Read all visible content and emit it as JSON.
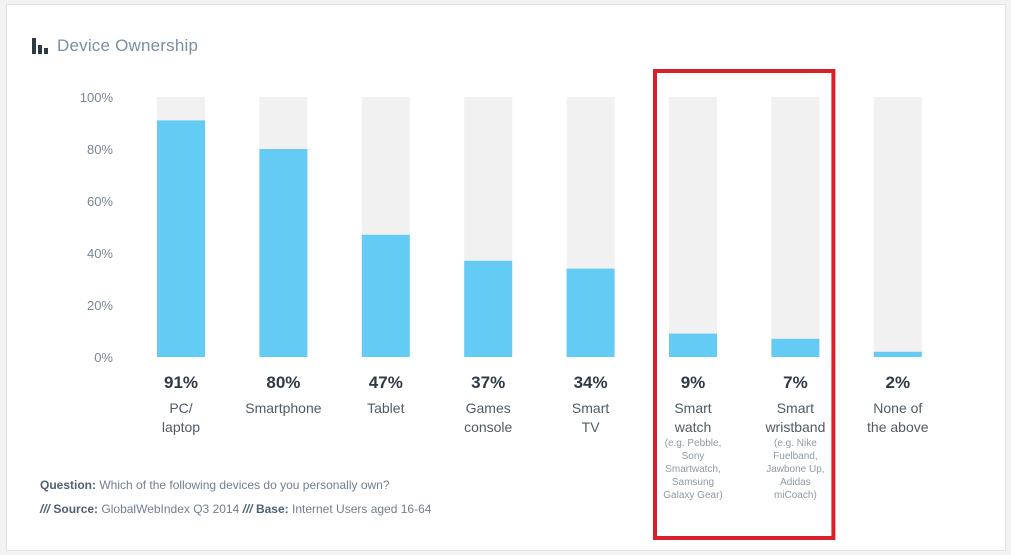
{
  "chart_data": {
    "type": "bar",
    "title": "Device Ownership",
    "categories": [
      "PC/\nlaptop",
      "Smartphone",
      "Tablet",
      "Games\nconsole",
      "Smart\nTV",
      "Smart\nwatch",
      "Smart\nwristband",
      "None of\nthe above"
    ],
    "sublabels": [
      "",
      "",
      "",
      "",
      "",
      "(e.g. Pebble,\nSony\nSmartwatch,\nSamsung\nGalaxy Gear)",
      "(e.g. Nike\nFuelband,\nJawbone Up,\nAdidas\nmiCoach)",
      ""
    ],
    "values": [
      91,
      80,
      47,
      37,
      34,
      9,
      7,
      2
    ],
    "value_labels": [
      "91%",
      "80%",
      "47%",
      "37%",
      "34%",
      "9%",
      "7%",
      "2%"
    ],
    "ylim": [
      0,
      100
    ],
    "y_ticks": [
      "0%",
      "20%",
      "40%",
      "60%",
      "80%",
      "100%"
    ],
    "grid": false,
    "highlighted_categories": [
      "Smart\nwatch",
      "Smart\nwristband"
    ],
    "colors": {
      "bar": "#64cbf4",
      "track": "#f1f1f1",
      "highlight_box": "#d9202a",
      "axis_text": "#7a8694",
      "label_text": "#4f5b66",
      "value_text": "#2f3a45",
      "sublabel_text": "#8f9aa4"
    }
  },
  "footer": {
    "question_label": "Question:",
    "question_text": "Which of the following devices do you personally own?",
    "slash": "///",
    "source_label": "Source:",
    "source_text": "GlobalWebIndex Q3 2014",
    "base_label": "Base:",
    "base_text": "Internet Users aged 16-64"
  },
  "icons": {
    "title": "bar-chart-icon"
  }
}
